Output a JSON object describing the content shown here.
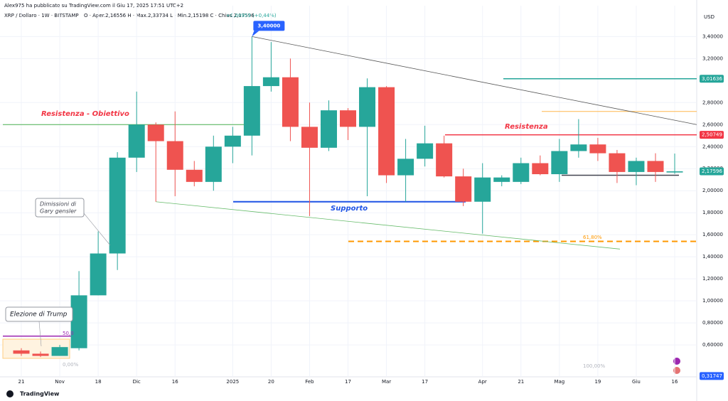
{
  "header": {
    "author_line": "Alex975 ha pubblicato su TradingView.com il Giu 17, 2025 17:51 UTC+2",
    "symbol": "XRP / Dollaro · 1W · BITSTAMP",
    "ohlc": "O · Aper.2,16556 H · Max.2,33734 L · Min.2,15198 C · Chius.2,17596",
    "change": "+0,00959 (+0,44%)"
  },
  "footer": {
    "brand": "TradingView"
  },
  "chart_data": {
    "type": "candlestick",
    "currency": "USD",
    "categories": [
      "21",
      null,
      "Nov",
      null,
      "18",
      null,
      "Dic",
      null,
      "16",
      null,
      null,
      "2025",
      null,
      "20",
      null,
      "Feb",
      null,
      "17",
      null,
      "Mar",
      null,
      "17",
      null,
      null,
      "Apr",
      null,
      "21",
      null,
      "Mag",
      null,
      "19",
      null,
      "Giu",
      null,
      "16"
    ],
    "open": [
      0.55,
      0.52,
      0.5,
      0.57,
      1.05,
      1.43,
      2.3,
      2.6,
      2.45,
      2.19,
      2.08,
      2.4,
      2.5,
      2.95,
      3.03,
      2.58,
      2.39,
      2.73,
      2.58,
      2.94,
      2.14,
      2.29,
      2.43,
      2.13,
      1.9,
      2.08,
      2.08,
      2.25,
      2.15,
      2.36,
      2.42,
      2.34,
      2.17,
      2.27,
      2.16556
    ],
    "high": [
      0.57,
      0.54,
      0.6,
      1.27,
      1.63,
      2.35,
      2.9,
      2.62,
      2.72,
      2.27,
      2.5,
      2.58,
      3.4,
      3.35,
      3.2,
      2.8,
      2.82,
      2.75,
      3.02,
      2.95,
      2.47,
      2.59,
      2.5,
      2.2,
      2.25,
      2.14,
      2.3,
      2.32,
      2.47,
      2.65,
      2.48,
      2.37,
      2.3,
      2.34,
      2.33734
    ],
    "low": [
      0.5,
      0.49,
      0.5,
      0.55,
      1.05,
      1.28,
      2.17,
      1.9,
      1.95,
      2.04,
      2.0,
      2.25,
      2.32,
      2.9,
      2.45,
      1.77,
      2.36,
      2.46,
      1.95,
      2.07,
      1.9,
      2.22,
      2.12,
      1.86,
      1.61,
      2.04,
      2.06,
      2.14,
      2.08,
      2.3,
      2.27,
      2.07,
      2.05,
      2.08,
      2.15198
    ],
    "close": [
      0.52,
      0.5,
      0.58,
      1.05,
      1.43,
      2.3,
      2.6,
      2.45,
      2.19,
      2.08,
      2.4,
      2.5,
      2.95,
      3.03,
      2.58,
      2.39,
      2.73,
      2.58,
      2.94,
      2.14,
      2.29,
      2.43,
      2.13,
      1.9,
      2.12,
      2.12,
      2.25,
      2.15,
      2.36,
      2.42,
      2.34,
      2.17,
      2.27,
      2.17,
      2.17596
    ],
    "up_color": "#26a69a",
    "down_color": "#ef5350",
    "ylim": [
      0.31,
      3.68
    ],
    "yticks": [
      {
        "value": 0.6,
        "label": "0,60000"
      },
      {
        "value": 0.8,
        "label": "0,80000"
      },
      {
        "value": 1.0,
        "label": "1,00000"
      },
      {
        "value": 1.2,
        "label": "1,20000"
      },
      {
        "value": 1.4,
        "label": "1,40000"
      },
      {
        "value": 1.6,
        "label": "1,60000"
      },
      {
        "value": 1.8,
        "label": "1,80000"
      },
      {
        "value": 2.0,
        "label": "2,00000"
      },
      {
        "value": 2.2,
        "label": "2,20000"
      },
      {
        "value": 2.4,
        "label": "2,40000"
      },
      {
        "value": 2.6,
        "label": "2,60000"
      },
      {
        "value": 2.8,
        "label": "2,80000"
      },
      {
        "value": 3.2,
        "label": "3,20000"
      },
      {
        "value": 3.4,
        "label": "3,40000"
      }
    ],
    "grid": true,
    "price_labels": [
      {
        "value": 3.01636,
        "label": "3,01636",
        "color": "#26a69a"
      },
      {
        "value": 2.50749,
        "label": "2,50749",
        "color": "#f23645"
      },
      {
        "value": 2.17596,
        "label": "2,17596",
        "color": "#26a69a"
      },
      {
        "value": 0.31747,
        "label": "0,31747",
        "color": "#2962ff"
      }
    ],
    "levels": [
      {
        "value": 2.6,
        "color": "#4caf50"
      },
      {
        "value": 2.50749,
        "color": "#f23645"
      },
      {
        "value": 1.9,
        "color": "#1e53e5"
      },
      {
        "value": 1.54,
        "color": "#ff9800"
      },
      {
        "value": 2.72,
        "color": "#ffb74d"
      },
      {
        "value": 3.01636,
        "color": "#26a69a"
      },
      {
        "value": 2.14,
        "color": "#434651"
      },
      {
        "value": 0.68,
        "color": "#9c27b0"
      }
    ],
    "trendlines": [
      {
        "values": [
          3.4,
          2.6
        ],
        "color": "#555555"
      },
      {
        "values": [
          1.9,
          1.47
        ],
        "color": "#66bb6a"
      }
    ],
    "high_callout": {
      "value": 3.4,
      "label": "3,40000"
    },
    "annotations": [
      "Resistenza - Obiettivo",
      "Resistenza",
      "Supporto",
      "Dimissioni di",
      "Gary gensler",
      "Elezione di Trump",
      "61,80%",
      "50,0",
      "0,00%",
      "100,00%"
    ]
  }
}
